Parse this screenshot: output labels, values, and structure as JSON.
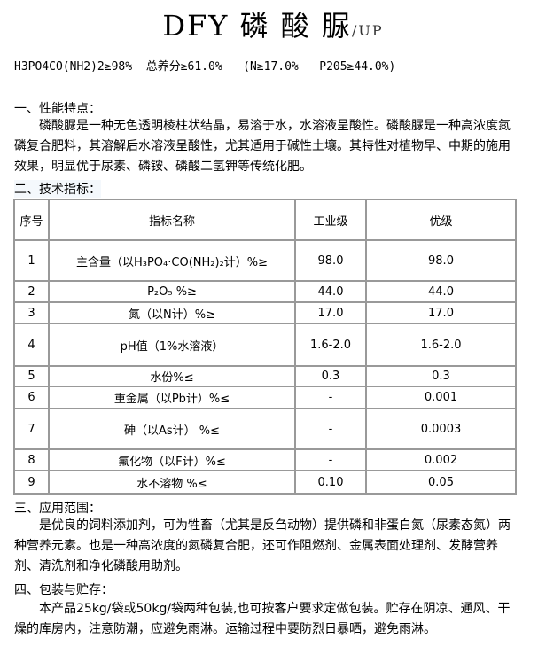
{
  "title": {
    "main": "DFY 磷 酸 脲",
    "suffix": "/UP"
  },
  "spec": "H3PO4CO(NH2)2≥98%  总养分≥61.0%   (N≥17.0%   P205≥44.0%)",
  "section1": {
    "heading": "一、性能特点：",
    "text": "磷酸脲是一种无色透明棱柱状结晶，易溶于水，水溶液呈酸性。磷酸脲是一种高浓度氮磷复合肥料，其溶解后水溶液呈酸性，尤其适用于碱性土壤。其特性对植物早、中期的施用效果，明显优于尿素、磷铵、磷酸二氢钾等传统化肥。"
  },
  "section2": {
    "heading": "二、技术指标："
  },
  "table": {
    "headers": [
      "序号",
      "指标名称",
      "工业级",
      "优级"
    ],
    "rows": [
      [
        "1",
        "主含量（以H₃PO₄·CO(NH₂)₂计）%≥",
        "98.0",
        "98.0"
      ],
      [
        "2",
        "P₂O₅  %≥",
        "44.0",
        "44.0"
      ],
      [
        "3",
        "氮（以N计）%≥",
        "17.0",
        "17.0"
      ],
      [
        "4",
        "pH值（1%水溶液）",
        "1.6-2.0",
        "1.6-2.0"
      ],
      [
        "5",
        "水份%≤",
        "0.3",
        "0.3"
      ],
      [
        "6",
        "重金属（以Pb计）%≤",
        "-",
        "0.001"
      ],
      [
        "7",
        "砷（以As计）  %≤",
        "-",
        "0.0003"
      ],
      [
        "8",
        "氟化物（以F计）%≤",
        "-",
        "0.002"
      ],
      [
        "9",
        "水不溶物  %≤",
        "0.10",
        "0.05"
      ]
    ]
  },
  "section3": {
    "heading": "三、应用范围：",
    "text": "是优良的饲料添加剂，可为牲畜（尤其是反刍动物）提供磷和非蛋白氮（尿素态氮）两种营养元素。也是一种高浓度的氮磷复合肥，还可作阻燃剂、金属表面处理剂、发酵营养剂、清洗剂和净化磷酸用助剂。"
  },
  "section4": {
    "heading": "四、包装与贮存：",
    "text": "本产品25kg/袋或50kg/袋两种包装,也可按客户要求定做包装。贮存在阴凉、通风、干燥的库房内，注意防潮，应避免雨淋。运输过程中要防烈日暴晒，避免雨淋。"
  }
}
